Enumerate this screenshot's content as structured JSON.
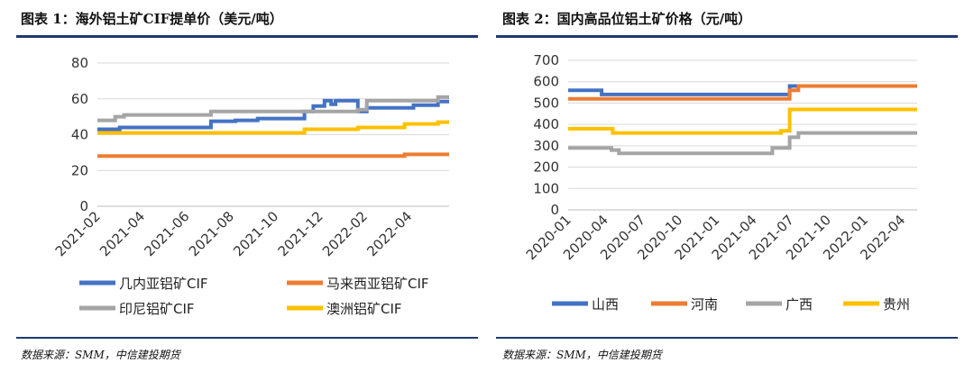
{
  "chart_data": [
    {
      "type": "line",
      "title": "图表 1：海外铝土矿CIF提单价（美元/吨）",
      "ylim": [
        0,
        80
      ],
      "y_ticks": [
        0,
        20,
        40,
        60,
        80
      ],
      "x_ticks": [
        "2021-02",
        "2021-04",
        "2021-06",
        "2021-08",
        "2021-10",
        "2021-12",
        "2022-02",
        "2022-04"
      ],
      "x_range_months": [
        0,
        15.8
      ],
      "series": [
        {
          "name": "几内亚铝矿CIF",
          "color": "#4472C4",
          "x": [
            0,
            1,
            1,
            5.1,
            5.1,
            6.2,
            6.2,
            7.2,
            7.2,
            9.3,
            9.3,
            9.7,
            9.7,
            10.2,
            10.2,
            10.5,
            10.5,
            10.7,
            10.7,
            11.7,
            11.7,
            12.1,
            12.1,
            14.2,
            14.2,
            15.3,
            15.3,
            15.8
          ],
          "y": [
            43,
            43,
            44,
            44,
            47.5,
            47.5,
            48,
            48,
            49,
            49,
            53,
            53,
            56,
            56,
            59,
            59,
            57,
            57,
            59,
            59,
            53,
            53,
            55,
            55,
            56.5,
            56.5,
            58.5,
            58.5
          ]
        },
        {
          "name": "马来西亚铝矿CIF",
          "color": "#ED7D31",
          "x": [
            0,
            13.8,
            13.8,
            15.8
          ],
          "y": [
            28,
            28,
            29,
            29
          ]
        },
        {
          "name": "印尼铝矿CIF",
          "color": "#A5A5A5",
          "x": [
            0,
            0.8,
            0.8,
            1.2,
            1.2,
            5.1,
            5.1,
            11.7,
            11.7,
            12.1,
            12.1,
            15.3,
            15.3,
            15.8
          ],
          "y": [
            48,
            48,
            50,
            50,
            51,
            51,
            53,
            53,
            54,
            54,
            59,
            59,
            61,
            61
          ]
        },
        {
          "name": "澳洲铝矿CIF",
          "color": "#FFC000",
          "x": [
            0,
            9.3,
            9.3,
            11.7,
            11.7,
            13.8,
            13.8,
            15.3,
            15.3,
            15.8
          ],
          "y": [
            41,
            41,
            43,
            43,
            44,
            44,
            46,
            46,
            47,
            47
          ]
        }
      ],
      "legend": [
        "几内亚铝矿CIF",
        "马来西亚铝矿CIF",
        "印尼铝矿CIF",
        "澳洲铝矿CIF"
      ],
      "source": "数据来源：SMM，中信建投期货"
    },
    {
      "type": "line",
      "title": "图表 2：国内高品位铝土矿价格（元/吨）",
      "ylim": [
        0,
        700
      ],
      "y_ticks": [
        0,
        100,
        200,
        300,
        400,
        500,
        600,
        700
      ],
      "x_ticks": [
        "2020-01",
        "2020-04",
        "2020-07",
        "2020-10",
        "2021-01",
        "2021-04",
        "2021-07",
        "2021-10",
        "2022-01",
        "2022-04"
      ],
      "x_range_months": [
        0,
        28.2
      ],
      "series": [
        {
          "name": "山西",
          "color": "#4472C4",
          "x": [
            0,
            2.7,
            2.7,
            17.9,
            17.9,
            28.2
          ],
          "y": [
            560,
            560,
            540,
            540,
            580,
            580
          ]
        },
        {
          "name": "河南",
          "color": "#ED7D31",
          "x": [
            0,
            17.9,
            17.9,
            18.6,
            18.6,
            28.2
          ],
          "y": [
            520,
            520,
            560,
            560,
            580,
            580
          ]
        },
        {
          "name": "广西",
          "color": "#A5A5A5",
          "x": [
            0,
            3.5,
            3.5,
            4.1,
            4.1,
            16.5,
            16.5,
            17.9,
            17.9,
            18.6,
            18.6,
            28.2
          ],
          "y": [
            290,
            290,
            280,
            280,
            265,
            265,
            290,
            290,
            340,
            340,
            360,
            360
          ]
        },
        {
          "name": "贵州",
          "color": "#FFC000",
          "x": [
            0,
            3.6,
            3.6,
            17.2,
            17.2,
            17.9,
            17.9,
            28.2
          ],
          "y": [
            380,
            380,
            360,
            360,
            370,
            370,
            470,
            470
          ]
        }
      ],
      "legend": [
        "山西",
        "河南",
        "广西",
        "贵州"
      ],
      "source": "数据来源：SMM，中信建投期货"
    }
  ]
}
